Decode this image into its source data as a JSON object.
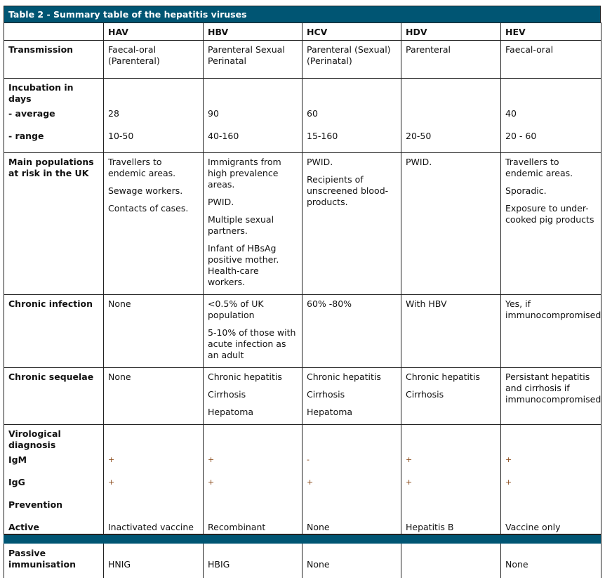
{
  "title": "Table 2 - Summary table of the hepatitis viruses",
  "columns": [
    "HAV",
    "HBV",
    "HCV",
    "HDV",
    "HEV"
  ],
  "transmission": {
    "label": "Transmission",
    "values": [
      "Faecal-oral (Parenteral)",
      "Parenteral Sexual Perinatal",
      "Parenteral (Sexual) (Perinatal)",
      "Parenteral",
      "Faecal-oral"
    ]
  },
  "incubation": {
    "label": "Incubation in days",
    "average_label": "- average",
    "average": [
      "28",
      "90",
      "60",
      "",
      "40"
    ],
    "range_label": "- range",
    "range": [
      "10-50",
      "40-160",
      "15-160",
      "20-50",
      "20 - 60"
    ]
  },
  "populations": {
    "label": "Main populations at risk in the UK",
    "values": [
      [
        "Travellers to endemic areas.",
        "Sewage workers.",
        "Contacts of cases."
      ],
      [
        "Immigrants from high prevalence areas.",
        "PWID.",
        "Multiple sexual partners.",
        "Infant of HBsAg positive mother. Health-care workers."
      ],
      [
        "PWID.",
        "Recipients of unscreened blood-products."
      ],
      [
        "PWID."
      ],
      [
        "Travellers to endemic areas.",
        "Sporadic.",
        "Exposure to under-cooked pig products"
      ]
    ]
  },
  "chronic_infection": {
    "label": "Chronic infection",
    "values": [
      [
        "None"
      ],
      [
        "<0.5% of UK population",
        "5-10% of those with acute infection as an adult"
      ],
      [
        "60% -80%"
      ],
      [
        "With HBV"
      ],
      [
        "Yes, if immunocompromised"
      ]
    ]
  },
  "chronic_sequelae": {
    "label": "Chronic sequelae",
    "values": [
      [
        "None"
      ],
      [
        "Chronic hepatitis",
        "Cirrhosis",
        "Hepatoma"
      ],
      [
        "Chronic hepatitis",
        "Cirrhosis",
        "Hepatoma"
      ],
      [
        "Chronic hepatitis",
        "Cirrhosis"
      ],
      [
        "Persistant hepatitis and cirrhosis if immunocompromised"
      ]
    ]
  },
  "virological": {
    "label": "Virological diagnosis",
    "igm_label": "IgM",
    "igm": [
      "+",
      "+",
      "-",
      "+",
      "+"
    ],
    "igg_label": "IgG",
    "igg": [
      "+",
      "+",
      "+",
      "+",
      "+"
    ]
  },
  "prevention": {
    "label": "Prevention",
    "active_label": "Active immunisation",
    "active": [
      "Inactivated vaccine",
      "Recombinant vaccine",
      "None",
      "Hepatitis B immunisation",
      "Vaccine only available in China"
    ],
    "passive_label": "Passive immunisation",
    "passive": [
      "HNIG",
      "HBIG",
      "None",
      "",
      "None"
    ]
  }
}
